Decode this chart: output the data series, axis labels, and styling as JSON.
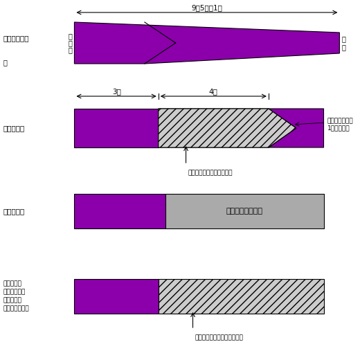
{
  "purple": "#8B00AA",
  "gray": "#AAAAAA",
  "black": "#000000",
  "white": "#FFFFFF",
  "section1_label": "名古屋仕立て",
  "section1_tare": "タ\nレ\n下",
  "section1_te": "手\n先",
  "section1_arrow": "9尺5寸～1丈",
  "section2_label": "棟葉仕立て",
  "section2_arrow1": "3尺",
  "section2_arrow2": "4尺",
  "section2_note1": "好みによっては",
  "section2_note2": "1尺ぐらい。",
  "section2_annot": "シンモスなど裏地をつける",
  "section3_label": "東京仕立て",
  "section3_inner": "帯芯が見えた状態",
  "section4_label": "昼夜仕立て\n（開き名古屋\n通し仕立て\nお勧め仕立て）",
  "section4_annot": "シンモスなどの裏地をつける"
}
